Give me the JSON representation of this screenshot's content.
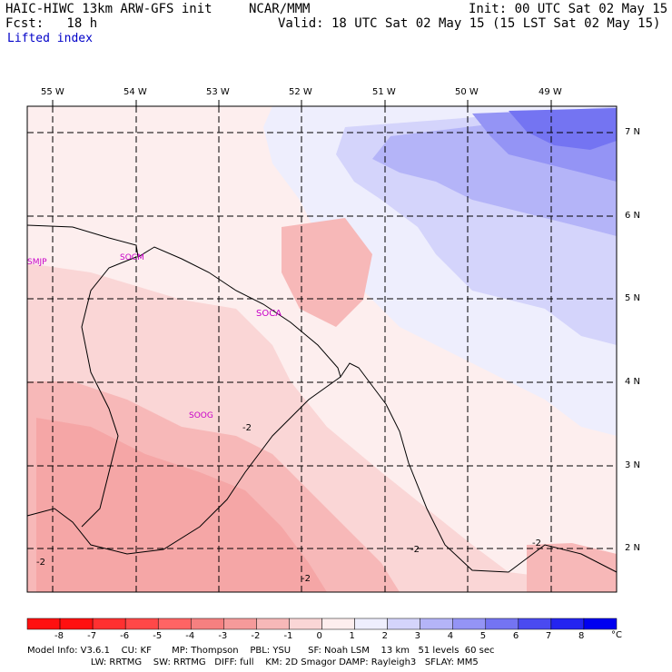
{
  "header": {
    "model_title": "HAIC-HIWC 13km ARW-GFS init",
    "org": "NCAR/MMM",
    "init": "Init: 00 UTC Sat 02 May 15",
    "fcst": "Fcst:   18 h",
    "valid": "Valid: 18 UTC Sat 02 May 15 (15 LST Sat 02 May 15)",
    "field": "Lifted index"
  },
  "lon_labels": [
    "55 W",
    "54 W",
    "53 W",
    "52 W",
    "51 W",
    "50 W",
    "49 W"
  ],
  "lat_labels": [
    "7 N",
    "6 N",
    "5 N",
    "4 N",
    "3 N",
    "2 N"
  ],
  "stations": [
    "SMJP",
    "SOCM",
    "SOCA",
    "SOOG"
  ],
  "contour_labels": [
    "-2",
    "-2",
    "-2",
    "-2",
    "-2"
  ],
  "colorbar": {
    "ticks": [
      "-8",
      "-7",
      "-6",
      "-5",
      "-4",
      "-3",
      "-2",
      "-1",
      "0",
      "1",
      "2",
      "3",
      "4",
      "5",
      "6",
      "7",
      "8"
    ],
    "unit": "°C",
    "colors": [
      "#ff1010",
      "#ff3030",
      "#ff4848",
      "#ff6464",
      "#f58080",
      "#f59a9a",
      "#f7b8b8",
      "#fad6d6",
      "#fdeeee",
      "#eeeefd",
      "#d4d4fb",
      "#b4b4f8",
      "#9494f5",
      "#7474f2",
      "#4a4af0",
      "#2424f0",
      "#0000f0"
    ]
  },
  "footer": {
    "line1": "Model Info: V3.6.1    CU: KF       MP: Thompson    PBL: YSU      SF: Noah LSM    13 km   51 levels  60 sec",
    "line2": "                      LW: RRTMG    SW: RRTMG   DIFF: full    KM: 2D Smagor DAMP: Rayleigh3   SFLAY: MM5"
  }
}
